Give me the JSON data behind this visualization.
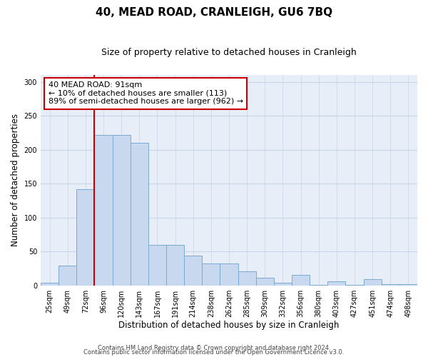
{
  "title": "40, MEAD ROAD, CRANLEIGH, GU6 7BQ",
  "subtitle": "Size of property relative to detached houses in Cranleigh",
  "xlabel": "Distribution of detached houses by size in Cranleigh",
  "ylabel": "Number of detached properties",
  "bar_labels": [
    "25sqm",
    "49sqm",
    "72sqm",
    "96sqm",
    "120sqm",
    "143sqm",
    "167sqm",
    "191sqm",
    "214sqm",
    "238sqm",
    "262sqm",
    "285sqm",
    "309sqm",
    "332sqm",
    "356sqm",
    "380sqm",
    "403sqm",
    "427sqm",
    "451sqm",
    "474sqm",
    "498sqm"
  ],
  "bar_values": [
    4,
    29,
    142,
    222,
    222,
    210,
    60,
    60,
    44,
    32,
    32,
    21,
    11,
    4,
    16,
    1,
    6,
    1,
    9,
    2,
    2
  ],
  "bar_color": "#c8d8ef",
  "bar_edge_color": "#7aaad0",
  "vline_color": "#cc0000",
  "vline_pos": 2.5,
  "annotation_box_text": "40 MEAD ROAD: 91sqm\n← 10% of detached houses are smaller (113)\n89% of semi-detached houses are larger (962) →",
  "annotation_box_color": "#cc0000",
  "annotation_box_facecolor": "white",
  "ylim": [
    0,
    310
  ],
  "yticks": [
    0,
    50,
    100,
    150,
    200,
    250,
    300
  ],
  "grid_color": "#c8d4e8",
  "background_color": "#e8eef8",
  "footer_line1": "Contains HM Land Registry data © Crown copyright and database right 2024.",
  "footer_line2": "Contains public sector information licensed under the Open Government Licence v3.0.",
  "title_fontsize": 11,
  "subtitle_fontsize": 9,
  "axis_label_fontsize": 8.5,
  "tick_fontsize": 7,
  "annotation_fontsize": 8,
  "footer_fontsize": 6
}
